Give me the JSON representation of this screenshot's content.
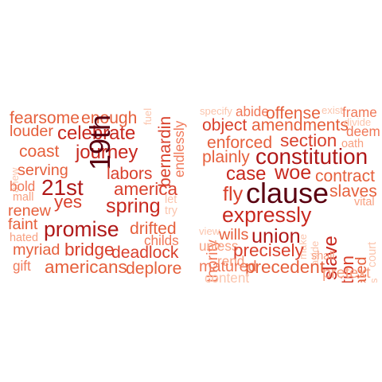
{
  "left_cloud": {
    "words": [
      {
        "text": "fearsome",
        "weight": 0.45,
        "color": "#e6603c",
        "vertical": false
      },
      {
        "text": "enough",
        "weight": 0.45,
        "color": "#e6603c",
        "vertical": false
      },
      {
        "text": "fuel",
        "weight": 0.15,
        "color": "#fbc4ac",
        "vertical": true
      },
      {
        "text": "bernardin",
        "weight": 0.45,
        "color": "#d9402c",
        "vertical": true
      },
      {
        "text": "endlessly",
        "weight": 0.3,
        "color": "#f07858",
        "vertical": true
      },
      {
        "text": "louder",
        "weight": 0.4,
        "color": "#e6603c",
        "vertical": false
      },
      {
        "text": "celebrate",
        "weight": 0.55,
        "color": "#c8281e",
        "vertical": false
      },
      {
        "text": "journey",
        "weight": 0.55,
        "color": "#c8281e",
        "vertical": false
      },
      {
        "text": "coast",
        "weight": 0.45,
        "color": "#e6603c",
        "vertical": false
      },
      {
        "text": "anew",
        "weight": 0.15,
        "color": "#fbc4ac",
        "vertical": true
      },
      {
        "text": "serving",
        "weight": 0.4,
        "color": "#e6603c",
        "vertical": false
      },
      {
        "text": "19th",
        "weight": 1.0,
        "color": "#5a0010",
        "vertical": true
      },
      {
        "text": "labors",
        "weight": 0.45,
        "color": "#d9402c",
        "vertical": false
      },
      {
        "text": "bold",
        "weight": 0.3,
        "color": "#f07858",
        "vertical": false
      },
      {
        "text": "21st",
        "weight": 0.7,
        "color": "#b01818",
        "vertical": false
      },
      {
        "text": "america",
        "weight": 0.5,
        "color": "#d9402c",
        "vertical": false
      },
      {
        "text": "mall",
        "weight": 0.2,
        "color": "#f8a080",
        "vertical": false
      },
      {
        "text": "yes",
        "weight": 0.5,
        "color": "#d9402c",
        "vertical": false
      },
      {
        "text": "spring",
        "weight": 0.6,
        "color": "#c8281e",
        "vertical": false
      },
      {
        "text": "let",
        "weight": 0.2,
        "color": "#fbc4ac",
        "vertical": false
      },
      {
        "text": "renew",
        "weight": 0.4,
        "color": "#e6603c",
        "vertical": false
      },
      {
        "text": "try",
        "weight": 0.2,
        "color": "#fbc4ac",
        "vertical": false
      },
      {
        "text": "faint",
        "weight": 0.4,
        "color": "#e6603c",
        "vertical": false
      },
      {
        "text": "promise",
        "weight": 0.65,
        "color": "#b01818",
        "vertical": false
      },
      {
        "text": "drifted",
        "weight": 0.45,
        "color": "#e6603c",
        "vertical": false
      },
      {
        "text": "hated",
        "weight": 0.2,
        "color": "#f8a080",
        "vertical": false
      },
      {
        "text": "childs",
        "weight": 0.3,
        "color": "#f07858",
        "vertical": false
      },
      {
        "text": "myriad",
        "weight": 0.4,
        "color": "#e6603c",
        "vertical": false
      },
      {
        "text": "bridge",
        "weight": 0.5,
        "color": "#d9402c",
        "vertical": false
      },
      {
        "text": "deadlock",
        "weight": 0.45,
        "color": "#d9402c",
        "vertical": false
      },
      {
        "text": "gift",
        "weight": 0.3,
        "color": "#f07858",
        "vertical": false
      },
      {
        "text": "americans",
        "weight": 0.5,
        "color": "#e6603c",
        "vertical": false
      },
      {
        "text": "deplore",
        "weight": 0.45,
        "color": "#e6603c",
        "vertical": false
      }
    ]
  },
  "right_cloud": {
    "words": [
      {
        "text": "specify",
        "weight": 0.15,
        "color": "#fbc4ac",
        "vertical": false
      },
      {
        "text": "abide",
        "weight": 0.3,
        "color": "#f07858",
        "vertical": false
      },
      {
        "text": "offense",
        "weight": 0.45,
        "color": "#e6603c",
        "vertical": false
      },
      {
        "text": "exist",
        "weight": 0.15,
        "color": "#fbc4ac",
        "vertical": false
      },
      {
        "text": "frame",
        "weight": 0.3,
        "color": "#f07858",
        "vertical": false
      },
      {
        "text": "object",
        "weight": 0.45,
        "color": "#d9402c",
        "vertical": false
      },
      {
        "text": "amendments",
        "weight": 0.45,
        "color": "#e6603c",
        "vertical": false
      },
      {
        "text": "divide",
        "weight": 0.15,
        "color": "#fbc4ac",
        "vertical": false
      },
      {
        "text": "deem",
        "weight": 0.3,
        "color": "#f07858",
        "vertical": false
      },
      {
        "text": "enforced",
        "weight": 0.45,
        "color": "#e6603c",
        "vertical": false
      },
      {
        "text": "section",
        "weight": 0.5,
        "color": "#d9402c",
        "vertical": false
      },
      {
        "text": "oath",
        "weight": 0.2,
        "color": "#f8a080",
        "vertical": false
      },
      {
        "text": "plainly",
        "weight": 0.45,
        "color": "#e6603c",
        "vertical": false
      },
      {
        "text": "constitution",
        "weight": 0.7,
        "color": "#b01818",
        "vertical": false
      },
      {
        "text": "case",
        "weight": 0.55,
        "color": "#c8281e",
        "vertical": false
      },
      {
        "text": "woe",
        "weight": 0.6,
        "color": "#c8281e",
        "vertical": false
      },
      {
        "text": "contract",
        "weight": 0.45,
        "color": "#e6603c",
        "vertical": false
      },
      {
        "text": "authority",
        "weight": 0.4,
        "color": "#f07858",
        "vertical": true
      },
      {
        "text": "fly",
        "weight": 0.6,
        "color": "#d9402c",
        "vertical": false
      },
      {
        "text": "clause",
        "weight": 1.0,
        "color": "#5a0010",
        "vertical": false
      },
      {
        "text": "slaves",
        "weight": 0.45,
        "color": "#e6603c",
        "vertical": false
      },
      {
        "text": "vital",
        "weight": 0.2,
        "color": "#f8a080",
        "vertical": false
      },
      {
        "text": "expressly",
        "weight": 0.65,
        "color": "#c8281e",
        "vertical": false
      },
      {
        "text": "slave",
        "weight": 0.55,
        "color": "#c8281e",
        "vertical": true
      },
      {
        "text": "separation",
        "weight": 0.5,
        "color": "#d9402c",
        "vertical": true
      },
      {
        "text": "frustrated",
        "weight": 0.4,
        "color": "#e6603c",
        "vertical": true
      },
      {
        "text": "court",
        "weight": 0.2,
        "color": "#fbc4ac",
        "vertical": true
      },
      {
        "text": "view",
        "weight": 0.15,
        "color": "#fbc4ac",
        "vertical": false
      },
      {
        "text": "wills",
        "weight": 0.4,
        "color": "#e6603c",
        "vertical": false
      },
      {
        "text": "union",
        "weight": 0.6,
        "color": "#b01818",
        "vertical": false
      },
      {
        "text": "make",
        "weight": 0.15,
        "color": "#fbc4ac",
        "vertical": true
      },
      {
        "text": "aside",
        "weight": 0.15,
        "color": "#fbc4ac",
        "vertical": true
      },
      {
        "text": "unless",
        "weight": 0.3,
        "color": "#f8a080",
        "vertical": false
      },
      {
        "text": "precisely",
        "weight": 0.5,
        "color": "#d9402c",
        "vertical": false
      },
      {
        "text": "shall",
        "weight": 0.2,
        "color": "#f8a080",
        "vertical": false
      },
      {
        "text": "invokes",
        "weight": 0.15,
        "color": "#fbc4ac",
        "vertical": true
      },
      {
        "text": "rend",
        "weight": 0.3,
        "color": "#f8a080",
        "vertical": false
      },
      {
        "text": "matured",
        "weight": 0.4,
        "color": "#f07858",
        "vertical": false
      },
      {
        "text": "precedent",
        "weight": 0.5,
        "color": "#e6603c",
        "vertical": false
      },
      {
        "text": "content",
        "weight": 0.3,
        "color": "#fbc4ac",
        "vertical": false
      },
      {
        "text": "pretext",
        "weight": 0.4,
        "color": "#f8a080",
        "vertical": false
      }
    ]
  }
}
